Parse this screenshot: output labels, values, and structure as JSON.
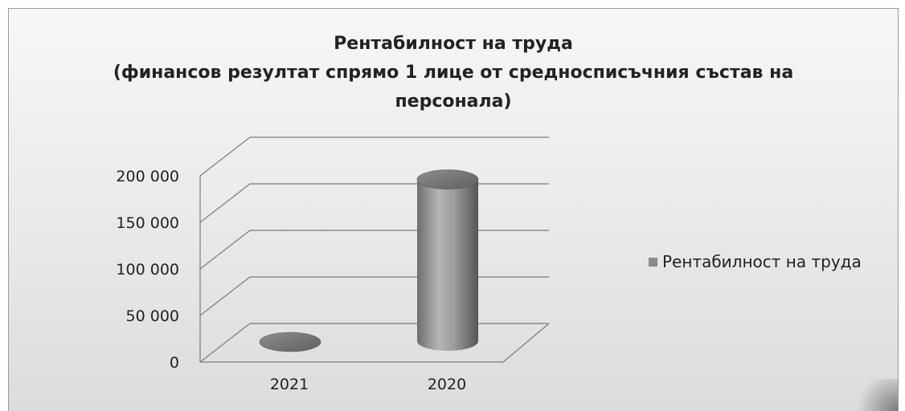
{
  "chart_data": {
    "type": "bar",
    "style": "3d-cylinder",
    "title_lines": [
      "Рентабилност на труда",
      "(финансов резултат спрямо 1 лице от средносписъчния състав на",
      "персонала)"
    ],
    "categories": [
      "2021",
      "2020"
    ],
    "series": [
      {
        "name": "Рентабилност на труда",
        "values": [
          0,
          190000
        ]
      }
    ],
    "y_ticks": [
      "0",
      "50 000",
      "100 000",
      "150 000",
      "200 000"
    ],
    "ylim": [
      0,
      200000
    ],
    "grid": true,
    "legend_position": "right",
    "colors": {
      "bar": "#8a8a8a",
      "bar_light": "#bdbdbd",
      "bar_dark": "#5e5e5e",
      "grid": "#7a7a7a"
    }
  }
}
